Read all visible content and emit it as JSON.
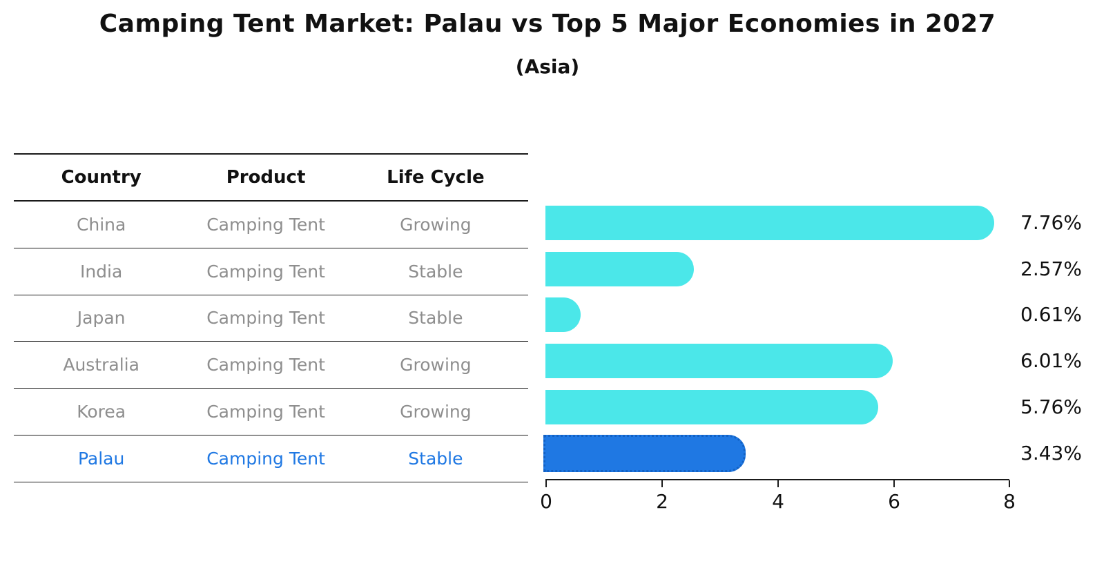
{
  "title": "Camping Tent Market: Palau vs Top 5 Major Economies in 2027",
  "subtitle": "(Asia)",
  "table": {
    "headers": [
      "Country",
      "Product",
      "Life Cycle"
    ],
    "rows": [
      {
        "country": "China",
        "product": "Camping Tent",
        "life_cycle": "Growing",
        "highlight": false
      },
      {
        "country": "India",
        "product": "Camping Tent",
        "life_cycle": "Stable",
        "highlight": false
      },
      {
        "country": "Japan",
        "product": "Camping Tent",
        "life_cycle": "Stable",
        "highlight": false
      },
      {
        "country": "Australia",
        "product": "Camping Tent",
        "life_cycle": "Growing",
        "highlight": false
      },
      {
        "country": "Korea",
        "product": "Camping Tent",
        "life_cycle": "Growing",
        "highlight": false
      },
      {
        "country": "Palau",
        "product": "Camping Tent",
        "life_cycle": "Stable",
        "highlight": true
      }
    ]
  },
  "chart_data": {
    "type": "bar",
    "orientation": "horizontal",
    "title": "Camping Tent Market: Palau vs Top 5 Major Economies in 2027",
    "subtitle": "(Asia)",
    "categories": [
      "China",
      "India",
      "Japan",
      "Australia",
      "Korea",
      "Palau"
    ],
    "values": [
      7.76,
      2.57,
      0.61,
      6.01,
      5.76,
      3.43
    ],
    "bar_labels": [
      "7.76%",
      "2.57%",
      "0.61%",
      "6.01%",
      "5.76%",
      "3.43%"
    ],
    "xlim": [
      0,
      8
    ],
    "xticks": [
      "0",
      "2",
      "4",
      "6",
      "8"
    ],
    "grid": false,
    "legend": false,
    "bar_color": "#4be7e9",
    "highlight_color": "#1f78e3",
    "highlight_index": 5,
    "highlight_category": "Palau",
    "text_color": "#111111",
    "muted_text_color": "#8e8e8e"
  }
}
